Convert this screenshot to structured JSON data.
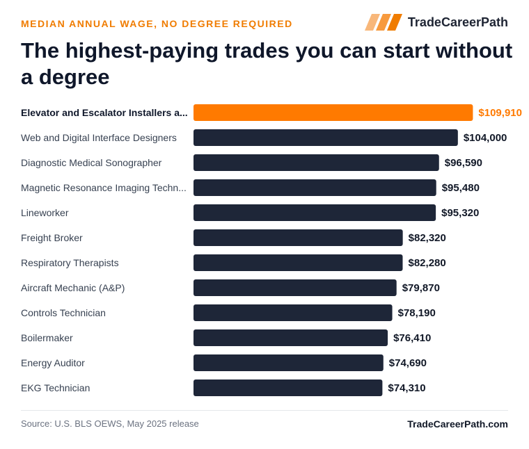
{
  "header": {
    "eyebrow": "MEDIAN ANNUAL WAGE, NO DEGREE REQUIRED",
    "brand_name": "TradeCareerPath",
    "brand_icon": "stripes-logo-icon",
    "title": "The highest-paying trades you can start without a degree"
  },
  "colors": {
    "accent": "#ff7a00",
    "bar": "#1e2638",
    "label": "#374151",
    "value": "#111827"
  },
  "chart_data": {
    "type": "bar",
    "orientation": "horizontal",
    "categories": [
      "Elevator and Escalator Installers a...",
      "Web and Digital Interface Designers",
      "Diagnostic Medical Sonographer",
      "Magnetic Resonance Imaging Techn...",
      "Lineworker",
      "Freight Broker",
      "Respiratory Therapists",
      "Aircraft Mechanic (A&P)",
      "Controls Technician",
      "Boilermaker",
      "Energy Auditor",
      "EKG Technician"
    ],
    "values": [
      109910,
      104000,
      96590,
      95480,
      95320,
      82320,
      82280,
      79870,
      78190,
      76410,
      74690,
      74310
    ],
    "value_labels": [
      "$109,910",
      "$104,000",
      "$96,590",
      "$95,480",
      "$95,320",
      "$82,320",
      "$82,280",
      "$79,870",
      "$78,190",
      "$76,410",
      "$74,690",
      "$74,310"
    ],
    "highlight_index": 0,
    "xlim": [
      0,
      115000
    ],
    "grid": false,
    "legend": "none"
  },
  "footer": {
    "source": "Source: U.S. BLS OEWS, May 2025 release",
    "site": "TradeCareerPath.com"
  }
}
